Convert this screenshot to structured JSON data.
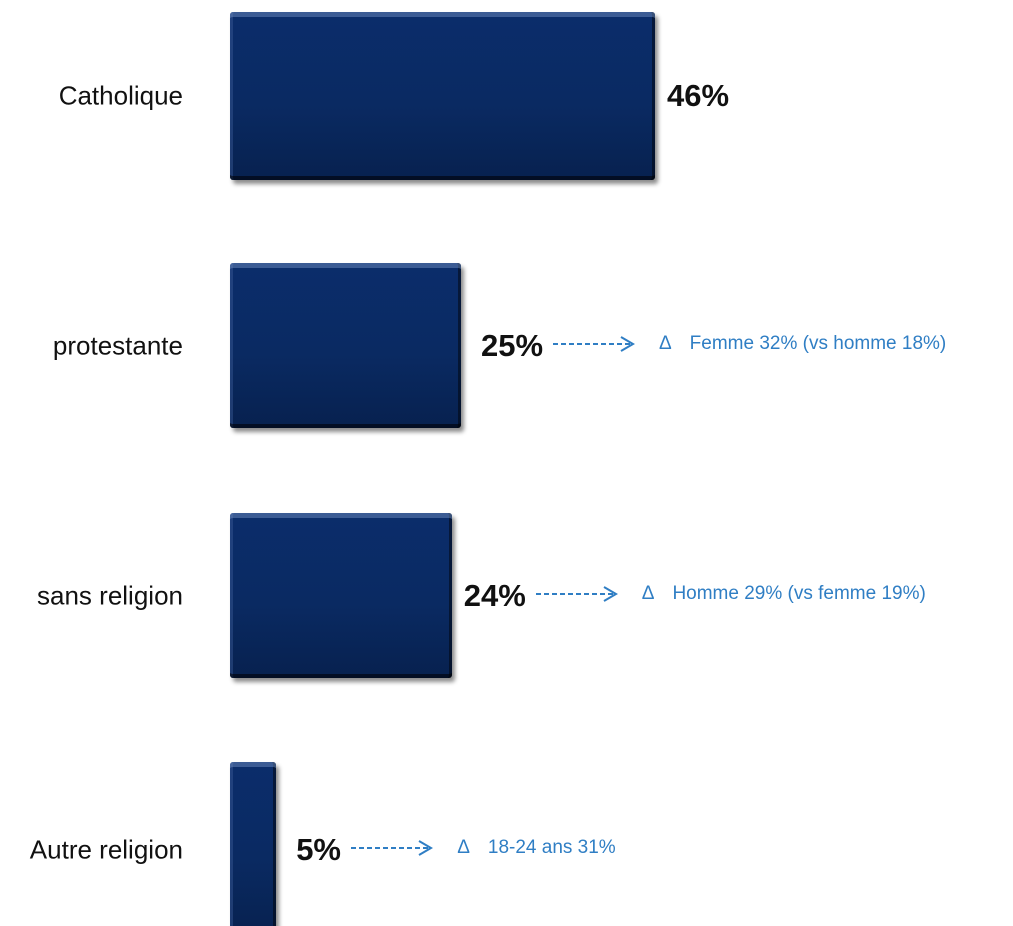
{
  "chart_data": {
    "type": "bar",
    "orientation": "horizontal",
    "categories": [
      "Catholique",
      "protestante",
      "sans religion",
      "Autre religion"
    ],
    "values": [
      46,
      25,
      24,
      5
    ],
    "value_labels": [
      "46%",
      "25%",
      "24%",
      "5%"
    ],
    "annotations": [
      null,
      {
        "symbol": "Δ",
        "text": "Femme 32% (vs homme 18%)"
      },
      {
        "symbol": "Δ",
        "text": "Homme 29% (vs femme 19%)"
      },
      {
        "symbol": "Δ",
        "text": "18-24 ans 31%"
      }
    ],
    "colors": {
      "bar": "#0a2a62",
      "annotation": "#2f7ec4",
      "text": "#111111"
    }
  }
}
